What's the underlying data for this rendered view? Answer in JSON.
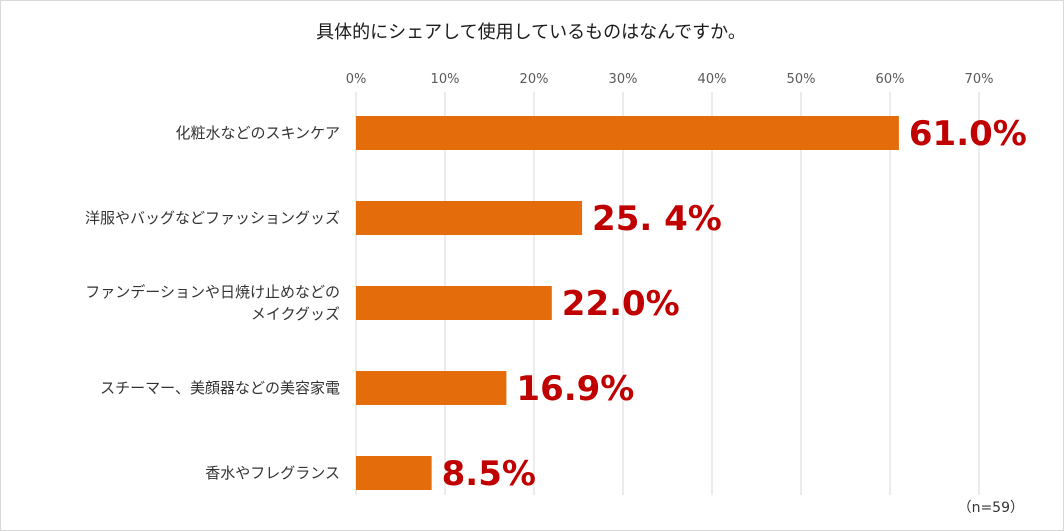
{
  "chart_data": {
    "type": "bar",
    "orientation": "horizontal",
    "title": "具体的にシェアして使用しているものはなんですか。",
    "categories": [
      "化粧水などのスキンケア",
      "洋服やバッグなどファッショングッズ",
      [
        "ファンデーションや日焼け止めなどの",
        "メイクグッズ"
      ],
      "スチーマー、美顔器などの美容家電",
      "香水やフレグランス"
    ],
    "values": [
      61.0,
      25.4,
      22.0,
      16.9,
      8.5
    ],
    "value_labels": [
      "61.0%",
      "25. 4%",
      "22.0%",
      "16.9%",
      "8.5%"
    ],
    "xticks": [
      "0%",
      "10%",
      "20%",
      "30%",
      "40%",
      "50%",
      "60%",
      "70%"
    ],
    "xlim": [
      0,
      70
    ],
    "grid": true,
    "bar_color": "#e46c0a",
    "label_color": "#c00000",
    "note": "（n=59）"
  }
}
